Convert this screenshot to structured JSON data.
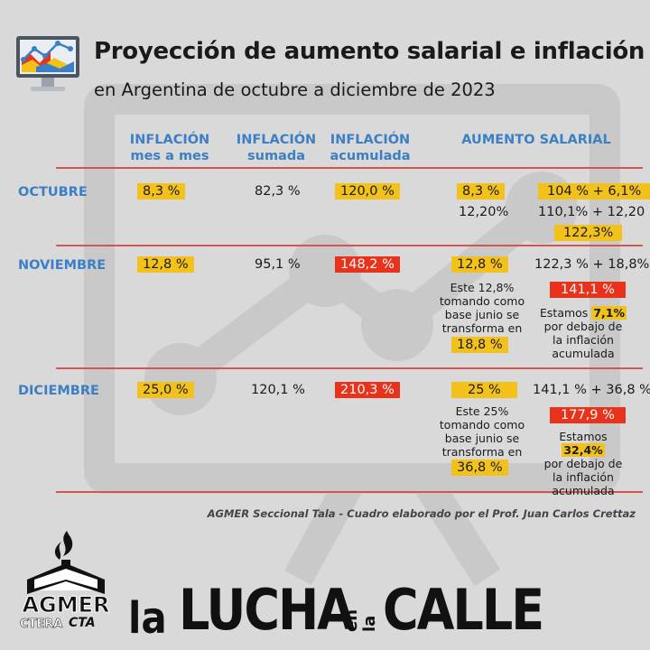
{
  "header": {
    "title": "Proyección de aumento salarial e inflación",
    "subtitle": "en Argentina de octubre a diciembre de 2023"
  },
  "columns": {
    "c1": [
      "INFLACIÓN",
      "mes a mes"
    ],
    "c2": [
      "INFLACIÓN",
      "sumada"
    ],
    "c3": [
      "INFLACIÓN",
      "acumulada"
    ],
    "c4": "AUMENTO SALARIAL"
  },
  "rows": {
    "oct": {
      "month": "OCTUBRE",
      "mes": "8,3 %",
      "sumada": "82,3 %",
      "acumulada": "120,0 %",
      "aumento_a": "8,3 %",
      "aumento_a2": "12,20%",
      "aumento_b1": "104 % + 6,1%",
      "aumento_b2": "110,1% + 12,20",
      "aumento_b3": "122,3%"
    },
    "nov": {
      "month": "NOVIEMBRE",
      "mes": "12,8 %",
      "sumada": "95,1 %",
      "acumulada": "148,2 %",
      "aumento_a": "12,8 %",
      "note_a": [
        "Este 12,8%",
        "tomando como",
        "base junio se",
        "transforma en"
      ],
      "aumento_a_result": "18,8 %",
      "aumento_b1": "122,3 % + 18,8%",
      "aumento_b2": "141,1 %",
      "estamos_pre": "Estamos",
      "estamos_val": "7,1%",
      "estamos_rest": [
        "por debajo de",
        "la inflación",
        "acumulada"
      ]
    },
    "dic": {
      "month": "DICIEMBRE",
      "mes": "25,0 %",
      "sumada": "120,1 %",
      "acumulada": "210,3 %",
      "aumento_a": "25 %",
      "note_a": [
        "Este 25%",
        "tomando como",
        "base junio se",
        "transforma en"
      ],
      "aumento_a_result": "36,8 %",
      "aumento_b1": "141,1 % + 36,8 %",
      "aumento_b2": "177,9 %",
      "estamos_pre": "Estamos",
      "estamos_val": "32,4%",
      "estamos_rest": [
        "por debajo de",
        "la inflación",
        "acumulada"
      ]
    }
  },
  "credit": "AGMER Seccional Tala - Cuadro elaborado por el Prof. Juan Carlos Crettaz",
  "logo": {
    "name": "AGMER",
    "sub1": "CTERA",
    "sub2": "CTA"
  },
  "slogan": {
    "a": "la",
    "b": "LUCHA",
    "c1": "en",
    "c2": "la",
    "d": "CALLE"
  },
  "colors": {
    "accent_blue": "#3b7fc4",
    "highlight_yellow": "#f2c21b",
    "highlight_red": "#e8321b",
    "line_red": "#d35450",
    "background": "#d9d9d9"
  }
}
